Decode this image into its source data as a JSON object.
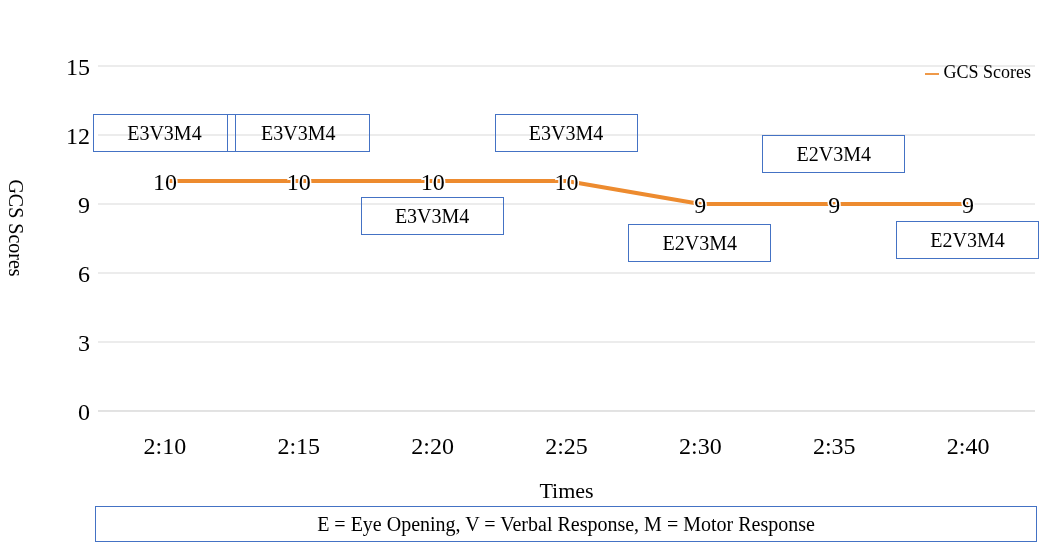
{
  "chart_data": {
    "type": "line",
    "xlabel": "Times",
    "ylabel": "GCS Scores",
    "categories": [
      "2:10",
      "2:15",
      "2:20",
      "2:25",
      "2:30",
      "2:35",
      "2:40"
    ],
    "series": [
      {
        "name": "GCS Scores",
        "color": "#ed8b2f",
        "values": [
          10,
          10,
          10,
          10,
          9,
          9,
          9
        ]
      }
    ],
    "ylim": [
      0,
      15
    ],
    "yticks": [
      0,
      3,
      6,
      9,
      12,
      15
    ],
    "grid": "y",
    "legend": "top right",
    "data_labels": true,
    "annotations": [
      {
        "text": "E3V3M4",
        "x": "2:10",
        "y": 10
      },
      {
        "text": "E3V3M4",
        "x": "2:15",
        "y": 10
      },
      {
        "text": "E3V3M4",
        "x": "2:20",
        "y": 10
      },
      {
        "text": "E3V3M4",
        "x": "2:25",
        "y": 10
      },
      {
        "text": "E2V3M4",
        "x": "2:30",
        "y": 9
      },
      {
        "text": "E2V3M4",
        "x": "2:35",
        "y": 9
      },
      {
        "text": "E2V3M4",
        "x": "2:40",
        "y": 9
      },
      "E = Eye Opening, V = Verbal Response, M = Motor Response"
    ]
  }
}
